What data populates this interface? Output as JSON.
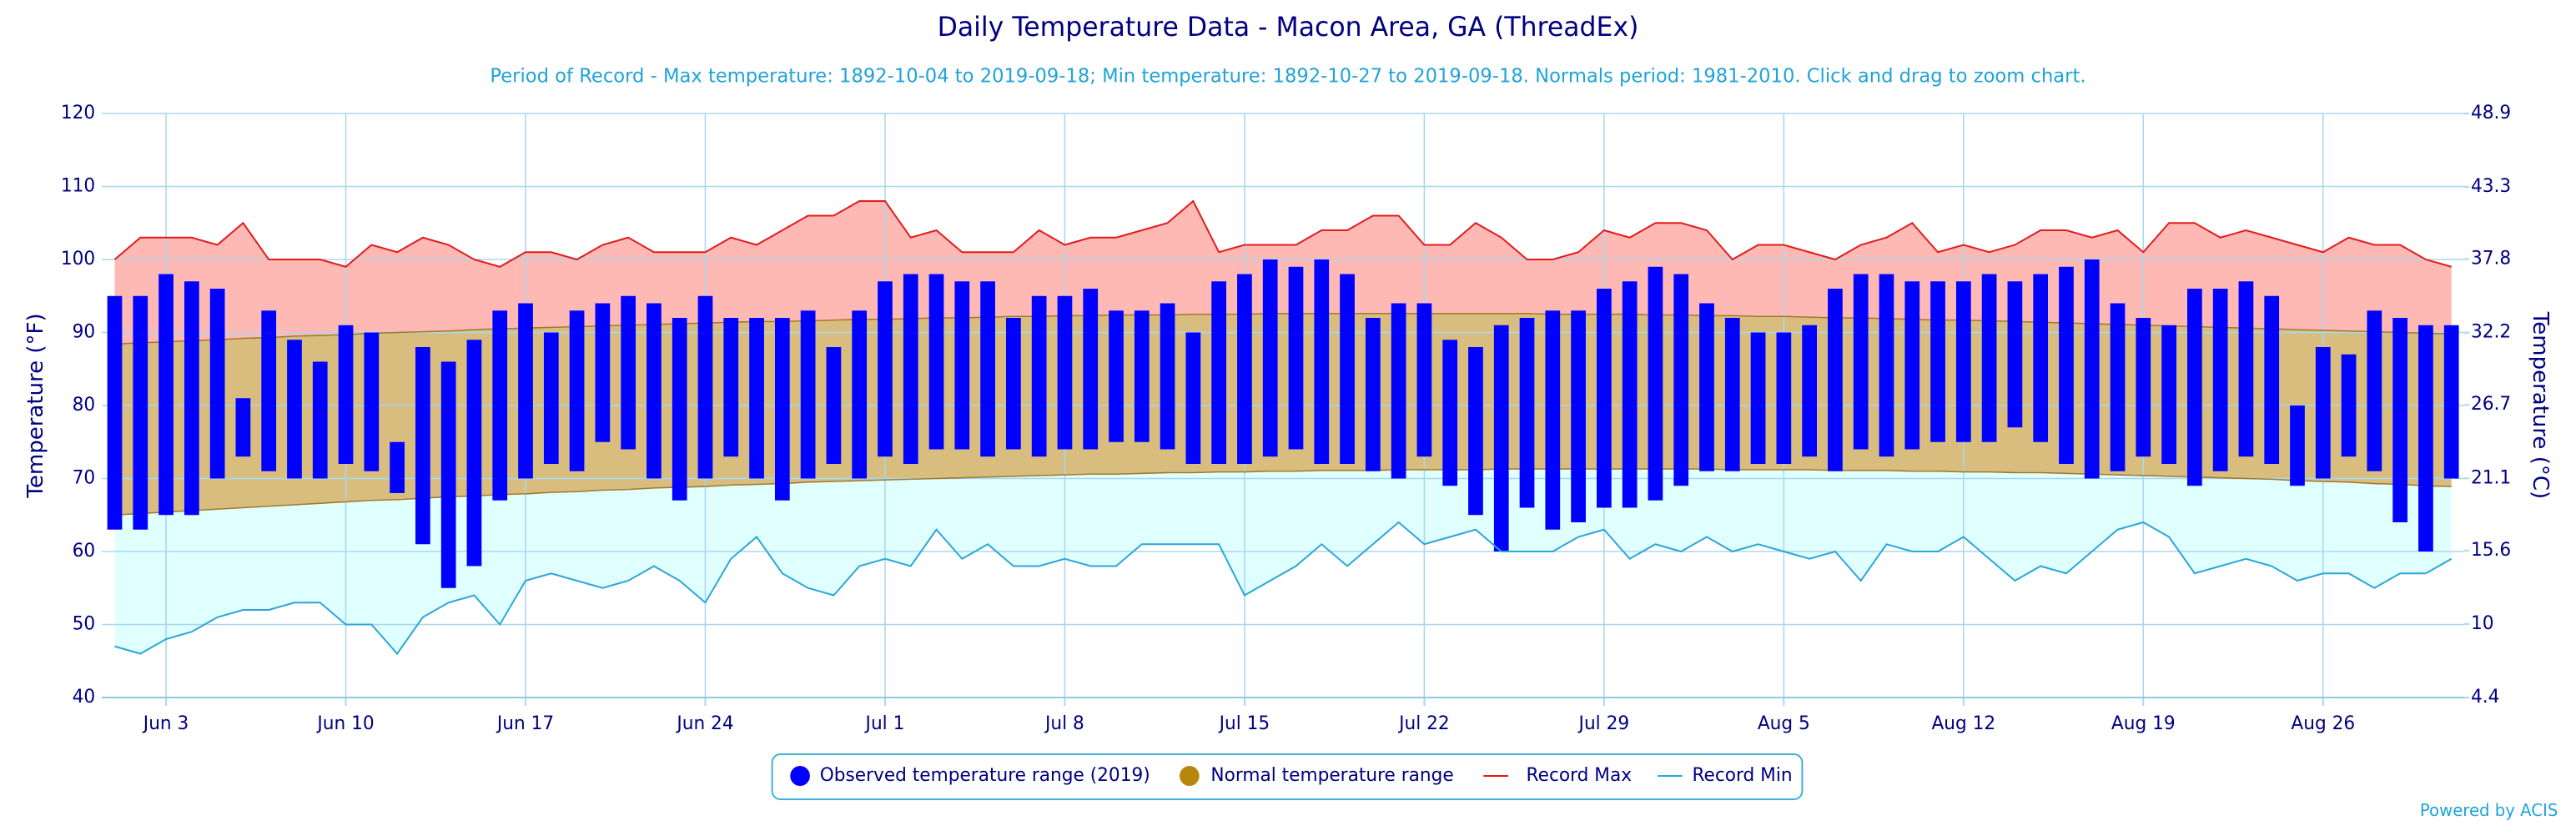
{
  "chart_data": {
    "type": "range_bar",
    "title": "Daily Temperature Data - Macon Area, GA (ThreadEx)",
    "subtitle": "Period of Record - Max temperature: 1892-10-04 to 2019-09-18; Min temperature: 1892-10-27 to 2019-09-18. Normals period: 1981-2010. Click and drag to zoom chart.",
    "y_label": "Temperature (°F)",
    "y2_label": "Temperature (°C)",
    "credit": "Powered by ACIS",
    "categories": [
      null,
      null,
      "Jun 3",
      null,
      null,
      null,
      null,
      null,
      null,
      "Jun 10",
      null,
      null,
      null,
      null,
      null,
      null,
      "Jun 17",
      null,
      null,
      null,
      null,
      null,
      null,
      "Jun 24",
      null,
      null,
      null,
      null,
      null,
      null,
      "Jul 1",
      null,
      null,
      null,
      null,
      null,
      null,
      "Jul 8",
      null,
      null,
      null,
      null,
      null,
      null,
      "Jul 15",
      null,
      null,
      null,
      null,
      null,
      null,
      "Jul 22",
      null,
      null,
      null,
      null,
      null,
      null,
      "Jul 29",
      null,
      null,
      null,
      null,
      null,
      null,
      "Aug 5",
      null,
      null,
      null,
      null,
      null,
      null,
      "Aug 12",
      null,
      null,
      null,
      null,
      null,
      null,
      "Aug 19",
      null,
      null,
      null,
      null,
      null,
      null,
      "Aug 26",
      null,
      null,
      null,
      null,
      null
    ],
    "ylim": [
      40,
      120
    ],
    "yticks": [
      40,
      50,
      60,
      70,
      80,
      90,
      100,
      110,
      120
    ],
    "y2lim": [
      4.4,
      48.9
    ],
    "y2ticks": [
      4.4,
      10,
      15.6,
      21.1,
      26.7,
      32.2,
      37.8,
      43.3,
      48.9
    ],
    "grid": true,
    "legend": "bottom",
    "series": [
      {
        "name": "Observed temperature range (2019)",
        "color": "#0000ff",
        "values": [
          [
            63,
            95
          ],
          [
            63,
            95
          ],
          [
            65,
            98
          ],
          [
            65,
            97
          ],
          [
            70,
            96
          ],
          [
            73,
            81
          ],
          [
            71,
            93
          ],
          [
            70,
            89
          ],
          [
            70,
            86
          ],
          [
            72,
            91
          ],
          [
            71,
            90
          ],
          [
            68,
            75
          ],
          [
            61,
            88
          ],
          [
            55,
            86
          ],
          [
            58,
            89
          ],
          [
            67,
            93
          ],
          [
            70,
            94
          ],
          [
            72,
            90
          ],
          [
            71,
            93
          ],
          [
            75,
            94
          ],
          [
            74,
            95
          ],
          [
            70,
            94
          ],
          [
            67,
            92
          ],
          [
            70,
            95
          ],
          [
            73,
            92
          ],
          [
            70,
            92
          ],
          [
            67,
            92
          ],
          [
            70,
            93
          ],
          [
            72,
            88
          ],
          [
            70,
            93
          ],
          [
            73,
            97
          ],
          [
            72,
            98
          ],
          [
            74,
            98
          ],
          [
            74,
            97
          ],
          [
            73,
            97
          ],
          [
            74,
            92
          ],
          [
            73,
            95
          ],
          [
            74,
            95
          ],
          [
            74,
            96
          ],
          [
            75,
            93
          ],
          [
            75,
            93
          ],
          [
            74,
            94
          ],
          [
            72,
            90
          ],
          [
            72,
            97
          ],
          [
            72,
            98
          ],
          [
            73,
            100
          ],
          [
            74,
            99
          ],
          [
            72,
            100
          ],
          [
            72,
            98
          ],
          [
            71,
            92
          ],
          [
            70,
            94
          ],
          [
            73,
            94
          ],
          [
            69,
            89
          ],
          [
            65,
            88
          ],
          [
            60,
            91
          ],
          [
            66,
            92
          ],
          [
            63,
            93
          ],
          [
            64,
            93
          ],
          [
            66,
            96
          ],
          [
            66,
            97
          ],
          [
            67,
            99
          ],
          [
            69,
            98
          ],
          [
            71,
            94
          ],
          [
            71,
            92
          ],
          [
            72,
            90
          ],
          [
            72,
            90
          ],
          [
            73,
            91
          ],
          [
            71,
            96
          ],
          [
            74,
            98
          ],
          [
            73,
            98
          ],
          [
            74,
            97
          ],
          [
            75,
            97
          ],
          [
            75,
            97
          ],
          [
            75,
            98
          ],
          [
            77,
            97
          ],
          [
            75,
            98
          ],
          [
            72,
            99
          ],
          [
            70,
            100
          ],
          [
            71,
            94
          ],
          [
            73,
            92
          ],
          [
            72,
            91
          ],
          [
            69,
            96
          ],
          [
            71,
            96
          ],
          [
            73,
            97
          ],
          [
            72,
            95
          ],
          [
            69,
            80
          ],
          [
            70,
            88
          ],
          [
            73,
            87
          ],
          [
            71,
            93
          ],
          [
            64,
            92
          ],
          [
            60,
            91
          ],
          [
            70,
            91
          ]
        ]
      },
      {
        "name": "Normal temperature range",
        "color": "#b8860b",
        "values": [
          [
            65.0,
            88.4
          ],
          [
            65.2,
            88.6
          ],
          [
            65.4,
            88.7
          ],
          [
            65.6,
            88.9
          ],
          [
            65.8,
            89.0
          ],
          [
            66.0,
            89.2
          ],
          [
            66.2,
            89.3
          ],
          [
            66.4,
            89.5
          ],
          [
            66.6,
            89.6
          ],
          [
            66.8,
            89.7
          ],
          [
            67.0,
            89.9
          ],
          [
            67.1,
            90.0
          ],
          [
            67.3,
            90.1
          ],
          [
            67.5,
            90.2
          ],
          [
            67.6,
            90.4
          ],
          [
            67.8,
            90.5
          ],
          [
            67.9,
            90.6
          ],
          [
            68.1,
            90.7
          ],
          [
            68.2,
            90.8
          ],
          [
            68.4,
            90.9
          ],
          [
            68.5,
            91.0
          ],
          [
            68.7,
            91.1
          ],
          [
            68.8,
            91.2
          ],
          [
            68.9,
            91.3
          ],
          [
            69.1,
            91.4
          ],
          [
            69.2,
            91.5
          ],
          [
            69.3,
            91.5
          ],
          [
            69.5,
            91.6
          ],
          [
            69.6,
            91.7
          ],
          [
            69.7,
            91.8
          ],
          [
            69.8,
            91.8
          ],
          [
            69.9,
            91.9
          ],
          [
            70.0,
            92.0
          ],
          [
            70.1,
            92.0
          ],
          [
            70.2,
            92.1
          ],
          [
            70.3,
            92.2
          ],
          [
            70.4,
            92.2
          ],
          [
            70.5,
            92.3
          ],
          [
            70.6,
            92.3
          ],
          [
            70.6,
            92.4
          ],
          [
            70.7,
            92.4
          ],
          [
            70.8,
            92.4
          ],
          [
            70.8,
            92.5
          ],
          [
            70.9,
            92.5
          ],
          [
            70.9,
            92.5
          ],
          [
            71.0,
            92.6
          ],
          [
            71.0,
            92.6
          ],
          [
            71.1,
            92.6
          ],
          [
            71.1,
            92.6
          ],
          [
            71.1,
            92.6
          ],
          [
            71.2,
            92.6
          ],
          [
            71.2,
            92.6
          ],
          [
            71.2,
            92.6
          ],
          [
            71.2,
            92.6
          ],
          [
            71.3,
            92.6
          ],
          [
            71.3,
            92.6
          ],
          [
            71.3,
            92.5
          ],
          [
            71.3,
            92.5
          ],
          [
            71.3,
            92.5
          ],
          [
            71.3,
            92.5
          ],
          [
            71.3,
            92.4
          ],
          [
            71.3,
            92.4
          ],
          [
            71.3,
            92.3
          ],
          [
            71.2,
            92.3
          ],
          [
            71.2,
            92.2
          ],
          [
            71.2,
            92.2
          ],
          [
            71.2,
            92.1
          ],
          [
            71.1,
            92.0
          ],
          [
            71.1,
            92.0
          ],
          [
            71.1,
            91.9
          ],
          [
            71.0,
            91.8
          ],
          [
            71.0,
            91.7
          ],
          [
            70.9,
            91.7
          ],
          [
            70.9,
            91.6
          ],
          [
            70.8,
            91.5
          ],
          [
            70.8,
            91.4
          ],
          [
            70.7,
            91.3
          ],
          [
            70.6,
            91.2
          ],
          [
            70.5,
            91.1
          ],
          [
            70.4,
            91.0
          ],
          [
            70.3,
            90.9
          ],
          [
            70.2,
            90.8
          ],
          [
            70.1,
            90.7
          ],
          [
            70.0,
            90.6
          ],
          [
            69.9,
            90.5
          ],
          [
            69.7,
            90.4
          ],
          [
            69.6,
            90.3
          ],
          [
            69.5,
            90.2
          ],
          [
            69.3,
            90.1
          ],
          [
            69.2,
            90.0
          ],
          [
            69.0,
            89.9
          ],
          [
            68.9,
            89.8
          ]
        ]
      },
      {
        "name": "Record Max",
        "color": "#e31a1c",
        "values": [
          100,
          103,
          103,
          103,
          102,
          105,
          100,
          100,
          100,
          99,
          102,
          101,
          103,
          102,
          100,
          99,
          101,
          101,
          100,
          102,
          103,
          101,
          101,
          101,
          103,
          102,
          104,
          106,
          106,
          108,
          108,
          103,
          104,
          101,
          101,
          101,
          104,
          102,
          103,
          103,
          104,
          105,
          108,
          101,
          102,
          102,
          102,
          104,
          104,
          106,
          106,
          102,
          102,
          105,
          103,
          100,
          100,
          101,
          104,
          103,
          105,
          105,
          104,
          100,
          102,
          102,
          101,
          100,
          102,
          103,
          105,
          101,
          102,
          101,
          102,
          104,
          104,
          103,
          104,
          101,
          105,
          105,
          103,
          104,
          103,
          102,
          101,
          103,
          102,
          102,
          100,
          99
        ]
      },
      {
        "name": "Record Min",
        "color": "#2aa6d8",
        "values": [
          47,
          46,
          48,
          49,
          51,
          52,
          52,
          53,
          53,
          50,
          50,
          46,
          51,
          53,
          54,
          50,
          56,
          57,
          56,
          55,
          56,
          58,
          56,
          53,
          59,
          62,
          57,
          55,
          54,
          58,
          59,
          58,
          63,
          59,
          61,
          58,
          58,
          59,
          58,
          58,
          61,
          61,
          61,
          61,
          54,
          56,
          58,
          61,
          58,
          61,
          64,
          61,
          62,
          63,
          60,
          60,
          60,
          62,
          63,
          59,
          61,
          60,
          62,
          60,
          61,
          60,
          59,
          60,
          56,
          61,
          60,
          60,
          62,
          59,
          56,
          58,
          57,
          60,
          63,
          64,
          62,
          57,
          58,
          59,
          58,
          56,
          57,
          57,
          55,
          57,
          57,
          59
        ]
      }
    ]
  }
}
